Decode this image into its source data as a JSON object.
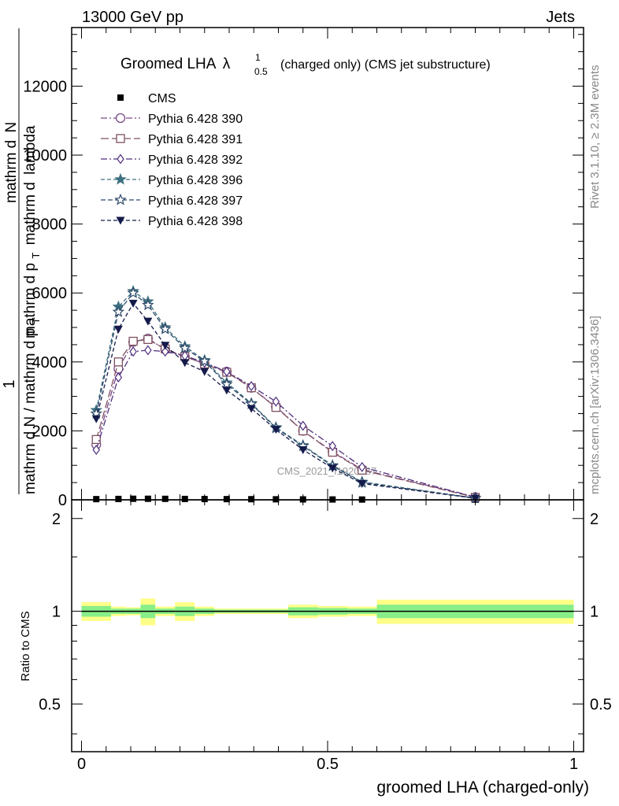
{
  "header": {
    "left_label": "13000 GeV pp",
    "right_label": "Jets"
  },
  "side_labels": {
    "rivet": "Rivet 3.1.10, ≥ 2.3M events",
    "mcplots": "mcplots.cern.ch [arXiv:1306.3436]"
  },
  "watermark": "CMS_2021_I1920187",
  "colors": {
    "cms": "#000000",
    "p390": "#7a4a86",
    "p391": "#7e5060",
    "p392": "#4f2f7e",
    "p396": "#3e7080",
    "p397": "#2e4a6a",
    "p398": "#141a4a",
    "band_outer": "#ffff88",
    "band_inner": "#88ee88"
  },
  "chart_data": [
    {
      "type": "line",
      "title_main": "Groomed LHA",
      "title_symbol": "λ",
      "title_sup": "1",
      "title_sub": "0.5",
      "title_rest": "(charged only) (CMS jet substructure)",
      "ylabel_num_top": "mathrm d",
      "ylabel_num_N": "N",
      "ylabel_den_top": "mathrm d p",
      "ylabel_den_T": "T",
      "ylabel_den_rest": "mathrm d",
      "ylabel_lambda": "lambda",
      "ylabel_one": "1",
      "ylabel_fraction": "mathrm d N / mathrm d p",
      "ylabel_fraction_T": "T",
      "ylim": [
        0,
        13700
      ],
      "xlim": [
        -0.02,
        1.02
      ],
      "yticks": [
        {
          "value": 0,
          "label": "0"
        },
        {
          "value": 2000,
          "label": "2000"
        },
        {
          "value": 4000,
          "label": "4000"
        },
        {
          "value": 6000,
          "label": "6000"
        },
        {
          "value": 8000,
          "label": "8000"
        },
        {
          "value": 10000,
          "label": "10000"
        },
        {
          "value": 12000,
          "label": "12000"
        }
      ],
      "legend_position": "top-left",
      "x": [
        0.03,
        0.075,
        0.105,
        0.135,
        0.17,
        0.21,
        0.25,
        0.295,
        0.345,
        0.395,
        0.45,
        0.51,
        0.57,
        0.8
      ],
      "series": [
        {
          "name": "CMS",
          "marker": "square",
          "color_key": "cms",
          "dash": "none",
          "values": [
            20,
            25,
            30,
            30,
            28,
            25,
            22,
            20,
            18,
            15,
            12,
            10,
            8,
            5
          ]
        },
        {
          "name": "Pythia 6.428 390",
          "marker": "circle",
          "color_key": "p390",
          "dash": "8,3,2,3",
          "values": [
            1600,
            3800,
            4580,
            4680,
            4360,
            4150,
            3950,
            3720,
            3250,
            2700,
            2000,
            1400,
            880,
            80
          ]
        },
        {
          "name": "Pythia 6.428 391",
          "marker": "square-open",
          "color_key": "p391",
          "dash": "10,4",
          "values": [
            1750,
            4000,
            4600,
            4650,
            4380,
            4160,
            3940,
            3700,
            3250,
            2680,
            2000,
            1380,
            860,
            70
          ]
        },
        {
          "name": "Pythia 6.428 392",
          "marker": "diamond",
          "color_key": "p392",
          "dash": "8,3,2,3",
          "values": [
            1450,
            3550,
            4300,
            4340,
            4300,
            4180,
            3980,
            3720,
            3300,
            2850,
            2150,
            1560,
            950,
            80
          ]
        },
        {
          "name": "Pythia 6.428 396",
          "marker": "star-filled",
          "color_key": "p396",
          "dash": "5,3",
          "values": [
            2600,
            5600,
            6050,
            5750,
            5000,
            4450,
            4050,
            3400,
            2800,
            2100,
            1580,
            1000,
            520,
            50
          ]
        },
        {
          "name": "Pythia 6.428 397",
          "marker": "star-open",
          "color_key": "p397",
          "dash": "6,3",
          "values": [
            2500,
            5450,
            6000,
            5650,
            4950,
            4400,
            4020,
            3350,
            2780,
            2080,
            1560,
            980,
            500,
            50
          ]
        },
        {
          "name": "Pythia 6.428 398",
          "marker": "triangle-down",
          "color_key": "p398",
          "dash": "5,3",
          "values": [
            2350,
            4950,
            5700,
            5180,
            4480,
            3980,
            3720,
            3180,
            2650,
            2040,
            1450,
            920,
            470,
            45
          ]
        }
      ]
    },
    {
      "type": "area",
      "ylabel": "Ratio to CMS",
      "xlabel": "groomed LHA (charged-only)",
      "ylim": [
        0.35,
        2.3
      ],
      "log_scale_y": true,
      "yticks": [
        {
          "value": 0.5,
          "label": "0.5"
        },
        {
          "value": 1,
          "label": "1"
        },
        {
          "value": 2,
          "label": "2"
        }
      ],
      "xticks": [
        {
          "value": 0,
          "label": "0"
        },
        {
          "value": 0.5,
          "label": "0.5"
        },
        {
          "value": 1,
          "label": "1"
        }
      ],
      "ratio_line": 1,
      "bands": [
        {
          "x0": 0.0,
          "x1": 0.06,
          "outer": 0.07,
          "inner": 0.04
        },
        {
          "x0": 0.06,
          "x1": 0.09,
          "outer": 0.035,
          "inner": 0.02
        },
        {
          "x0": 0.09,
          "x1": 0.12,
          "outer": 0.03,
          "inner": 0.02
        },
        {
          "x0": 0.12,
          "x1": 0.15,
          "outer": 0.1,
          "inner": 0.05
        },
        {
          "x0": 0.15,
          "x1": 0.19,
          "outer": 0.035,
          "inner": 0.02
        },
        {
          "x0": 0.19,
          "x1": 0.23,
          "outer": 0.07,
          "inner": 0.035
        },
        {
          "x0": 0.23,
          "x1": 0.27,
          "outer": 0.035,
          "inner": 0.02
        },
        {
          "x0": 0.27,
          "x1": 0.32,
          "outer": 0.02,
          "inner": 0.012
        },
        {
          "x0": 0.32,
          "x1": 0.42,
          "outer": 0.02,
          "inner": 0.012
        },
        {
          "x0": 0.42,
          "x1": 0.48,
          "outer": 0.05,
          "inner": 0.03
        },
        {
          "x0": 0.48,
          "x1": 0.54,
          "outer": 0.04,
          "inner": 0.025
        },
        {
          "x0": 0.54,
          "x1": 0.6,
          "outer": 0.035,
          "inner": 0.02
        },
        {
          "x0": 0.6,
          "x1": 1.0,
          "outer": 0.09,
          "inner": 0.05
        }
      ]
    }
  ]
}
